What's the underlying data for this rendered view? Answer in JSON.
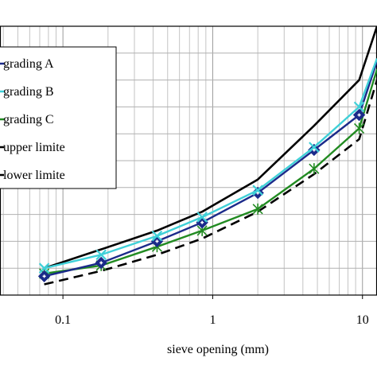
{
  "chart_data": {
    "type": "line",
    "xlabel": "sieve opening (mm)",
    "ylabel": "",
    "x_scale": "log",
    "xlim": [
      0.038,
      12.5
    ],
    "ylim": [
      0,
      100
    ],
    "y_gridlines": 11,
    "grid": true,
    "x_tick_labels": [
      "0.1",
      "1",
      "10"
    ],
    "x_tick_values": [
      0.1,
      1,
      10
    ],
    "legend_position": "top-left",
    "series": [
      {
        "name": "grading A",
        "color": "#1b2a8a",
        "marker": "diamond",
        "x": [
          0.075,
          0.18,
          0.425,
          0.85,
          2,
          4.75,
          9.5,
          12.5
        ],
        "y": [
          7,
          12,
          20,
          27,
          38,
          54,
          67,
          87
        ]
      },
      {
        "name": "grading B",
        "color": "#3fd0d8",
        "marker": "x",
        "x": [
          0.075,
          0.18,
          0.425,
          0.85,
          2,
          4.75,
          9.5,
          12.5
        ],
        "y": [
          10,
          15,
          22,
          29,
          39,
          55,
          70,
          88
        ]
      },
      {
        "name": "grading C",
        "color": "#228b22",
        "marker": "asterisk",
        "x": [
          0.075,
          0.18,
          0.425,
          0.85,
          2,
          4.75,
          9.5,
          12.5
        ],
        "y": [
          8,
          11,
          18,
          24,
          32,
          47,
          62,
          84
        ]
      },
      {
        "name": "upper limite",
        "color": "#000000",
        "dash": "solid",
        "x": [
          0.075,
          0.18,
          0.425,
          0.85,
          2,
          4.75,
          9.5,
          12.5
        ],
        "y": [
          10,
          17,
          24,
          31,
          43,
          63,
          80,
          100
        ]
      },
      {
        "name": "lower limite",
        "color": "#000000",
        "dash": "dashed",
        "x": [
          0.075,
          0.18,
          0.425,
          0.85,
          2,
          4.75,
          9.5,
          12.5
        ],
        "y": [
          4,
          9,
          15,
          21,
          31,
          45,
          58,
          80
        ]
      }
    ]
  }
}
